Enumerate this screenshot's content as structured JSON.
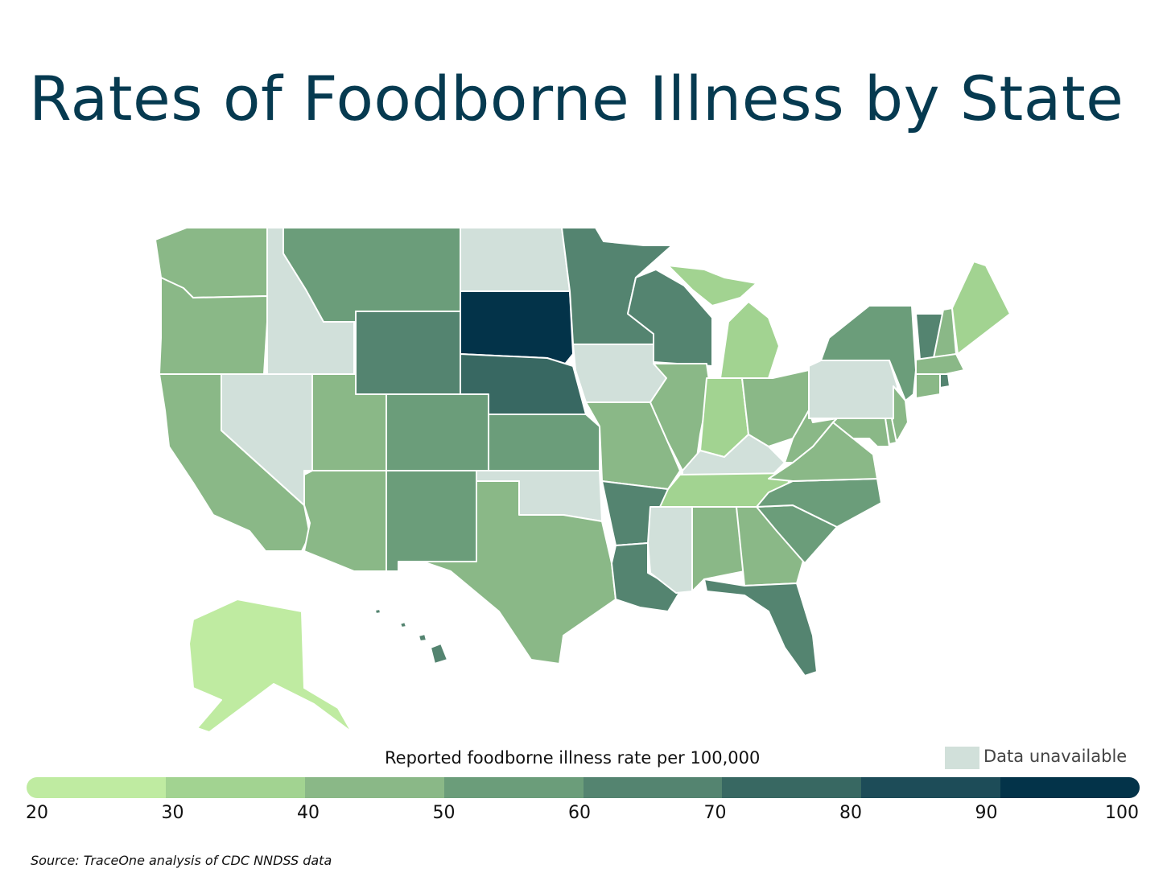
{
  "title": "Rates of Foodborne Illness by State",
  "legend": {
    "title": "Reported foodborne illness rate per 100,000",
    "unavailable_label": "Data unavailable",
    "unavailable_color": "#d1e0da",
    "ticks": [
      "20",
      "30",
      "40",
      "50",
      "60",
      "70",
      "80",
      "90",
      "100"
    ],
    "bins": [
      {
        "range": [
          20,
          30
        ],
        "color": "#bfeba1"
      },
      {
        "range": [
          30,
          40
        ],
        "color": "#a2d391"
      },
      {
        "range": [
          40,
          50
        ],
        "color": "#8ab887"
      },
      {
        "range": [
          50,
          60
        ],
        "color": "#6b9d7a"
      },
      {
        "range": [
          60,
          70
        ],
        "color": "#548470"
      },
      {
        "range": [
          70,
          80
        ],
        "color": "#386862"
      },
      {
        "range": [
          80,
          90
        ],
        "color": "#1d4c58"
      },
      {
        "range": [
          90,
          100
        ],
        "color": "#033349"
      }
    ]
  },
  "source": "Source: TraceOne analysis of CDC NNDSS data",
  "chart_data": {
    "type": "choropleth",
    "title": "Rates of Foodborne Illness by State",
    "value_label": "Reported foodborne illness rate per 100,000",
    "states": {
      "WA": "40-50",
      "OR": "40-50",
      "CA": "40-50",
      "ID": "unavailable",
      "NV": "unavailable",
      "MT": "50-60",
      "WY": "60-70",
      "UT": "40-50",
      "AZ": "40-50",
      "CO": "50-60",
      "NM": "50-60",
      "ND": "unavailable",
      "SD": "90-100",
      "NE": "70-80",
      "KS": "50-60",
      "OK": "unavailable",
      "TX": "40-50",
      "MN": "60-70",
      "IA": "unavailable",
      "MO": "40-50",
      "AR": "60-70",
      "LA": "60-70",
      "WI": "60-70",
      "IL": "40-50",
      "MI": "30-40",
      "IN": "30-40",
      "OH": "40-50",
      "KY": "unavailable",
      "TN": "30-40",
      "MS": "unavailable",
      "AL": "40-50",
      "GA": "40-50",
      "FL": "60-70",
      "SC": "50-60",
      "NC": "50-60",
      "VA": "40-50",
      "WV": "40-50",
      "PA": "unavailable",
      "NY": "50-60",
      "VT": "60-70",
      "NH": "40-50",
      "ME": "30-40",
      "MA": "40-50",
      "CT": "40-50",
      "RI": "60-70",
      "NJ": "40-50",
      "DE": "40-50",
      "MD": "40-50",
      "HI": "60-70",
      "AK": "20-30"
    }
  }
}
